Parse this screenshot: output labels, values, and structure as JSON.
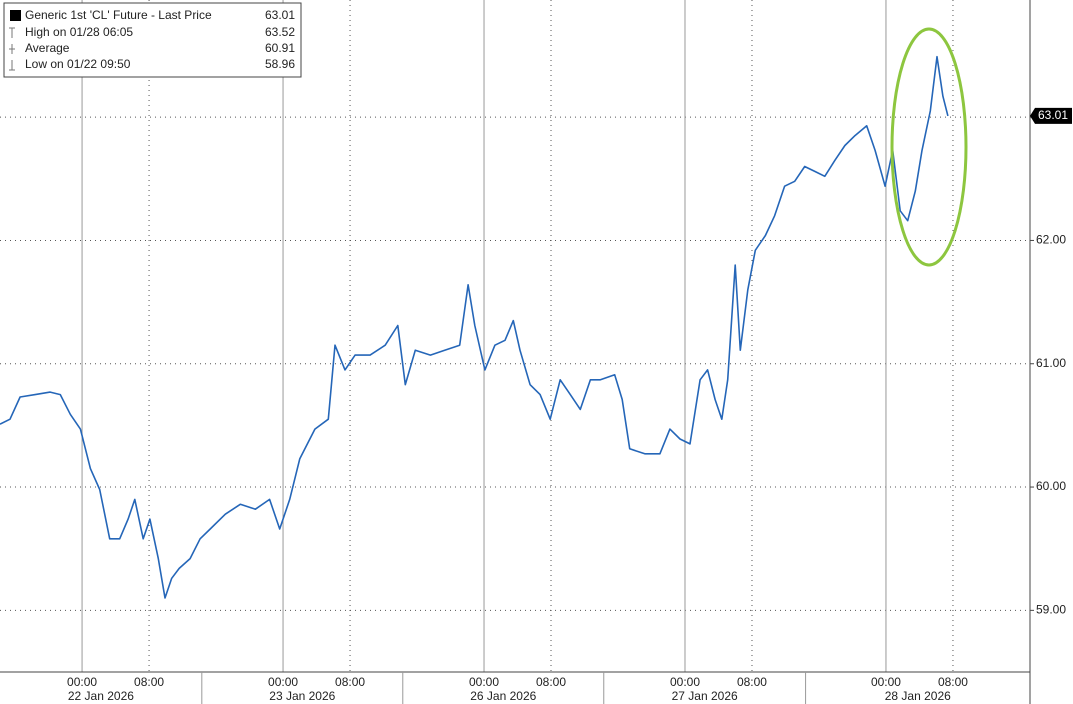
{
  "chart_data": {
    "type": "line",
    "x": [
      -9.8,
      -8.6,
      -7.4,
      -5.6,
      -3.8,
      -2.6,
      -1.4,
      -0.2,
      1.0,
      2.1,
      3.3,
      4.5,
      5.5,
      6.3,
      7.3,
      8.1,
      9.1,
      9.9,
      10.7,
      11.6,
      12.9,
      14.1,
      15.3,
      17.1,
      18.9,
      20.7,
      22.4,
      23.6,
      24.8,
      26.0,
      27.8,
      29.4,
      30.2,
      31.4,
      32.6,
      34.4,
      36.2,
      37.7,
      38.6,
      39.8,
      41.6,
      43.3,
      45.1,
      46.1,
      46.9,
      48.1,
      49.3,
      50.5,
      51.5,
      52.3,
      53.5,
      54.7,
      55.9,
      57.1,
      58.3,
      59.5,
      60.7,
      61.9,
      63.6,
      64.5,
      65.4,
      67.2,
      69.0,
      70.2,
      71.4,
      72.6,
      73.8,
      74.7,
      75.6,
      76.4,
      77.1,
      78.0,
      78.6,
      79.5,
      80.4,
      81.6,
      82.7,
      83.9,
      85.1,
      86.3,
      87.5,
      88.7,
      89.9,
      91.1,
      92.3,
      93.7,
      94.7,
      95.9,
      96.8,
      97.7,
      98.6,
      99.5,
      100.3,
      101.3,
      102.1,
      102.8,
      103.4
    ],
    "series": [
      {
        "name": "Generic 1st 'CL' Future - Last Price",
        "color": "#2566b8",
        "values": [
          60.51,
          60.55,
          60.73,
          60.75,
          60.77,
          60.75,
          60.59,
          60.47,
          60.15,
          59.98,
          59.58,
          59.58,
          59.74,
          59.9,
          59.58,
          59.74,
          59.42,
          59.1,
          59.26,
          59.34,
          59.42,
          59.58,
          59.66,
          59.78,
          59.86,
          59.82,
          59.9,
          59.66,
          59.9,
          60.23,
          60.47,
          60.55,
          61.15,
          60.95,
          61.07,
          61.07,
          61.15,
          61.31,
          60.83,
          61.11,
          61.07,
          61.11,
          61.15,
          61.64,
          61.31,
          60.95,
          61.15,
          61.19,
          61.35,
          61.11,
          60.83,
          60.75,
          60.55,
          60.87,
          60.75,
          60.63,
          60.87,
          60.87,
          60.91,
          60.71,
          60.31,
          60.27,
          60.27,
          60.47,
          60.39,
          60.35,
          60.87,
          60.95,
          60.71,
          60.55,
          60.87,
          61.8,
          61.11,
          61.6,
          61.92,
          62.04,
          62.2,
          62.44,
          62.48,
          62.6,
          62.56,
          62.52,
          62.65,
          62.77,
          62.85,
          62.93,
          62.73,
          62.44,
          62.73,
          62.24,
          62.16,
          62.4,
          62.73,
          63.05,
          63.49,
          63.17,
          63.01
        ]
      }
    ],
    "xlim": [
      -9.8,
      113.2
    ],
    "xticks": [
      {
        "value": 0,
        "label": "00:00"
      },
      {
        "value": 8,
        "label": "08:00"
      },
      {
        "value": 24,
        "label": "00:00"
      },
      {
        "value": 32,
        "label": "08:00"
      },
      {
        "value": 48,
        "label": "00:00"
      },
      {
        "value": 56,
        "label": "08:00"
      },
      {
        "value": 72,
        "label": "00:00"
      },
      {
        "value": 80,
        "label": "08:00"
      },
      {
        "value": 96,
        "label": "00:00"
      },
      {
        "value": 104,
        "label": "08:00"
      }
    ],
    "xgroups": [
      {
        "label": "22 Jan 2026",
        "range": [
          -9.8,
          14.3
        ]
      },
      {
        "label": "23 Jan 2026",
        "range": [
          14.3,
          38.3
        ]
      },
      {
        "label": "26 Jan 2026",
        "range": [
          38.3,
          62.3
        ]
      },
      {
        "label": "27 Jan 2026",
        "range": [
          62.3,
          86.4
        ]
      },
      {
        "label": "28 Jan 2026",
        "range": [
          86.4,
          113.2
        ]
      }
    ],
    "ylim": [
      58.5,
      63.95
    ],
    "yticks": [
      {
        "value": 59,
        "label": "59.00"
      },
      {
        "value": 60,
        "label": "60.00"
      },
      {
        "value": 61,
        "label": "61.00"
      },
      {
        "value": 62,
        "label": "62.00"
      },
      {
        "value": 63,
        "label": "63.00"
      }
    ],
    "last_price": {
      "value": 63.01,
      "label": "63.01"
    },
    "legend": {
      "title": "Generic 1st 'CL' Future - Last Price",
      "items": [
        {
          "label": "High on 01/28 06:05",
          "value": "63.52"
        },
        {
          "label": "Average",
          "value": "60.91"
        },
        {
          "label": "Low on 01/22 09:50",
          "value": "58.96"
        }
      ]
    },
    "grid": true
  }
}
